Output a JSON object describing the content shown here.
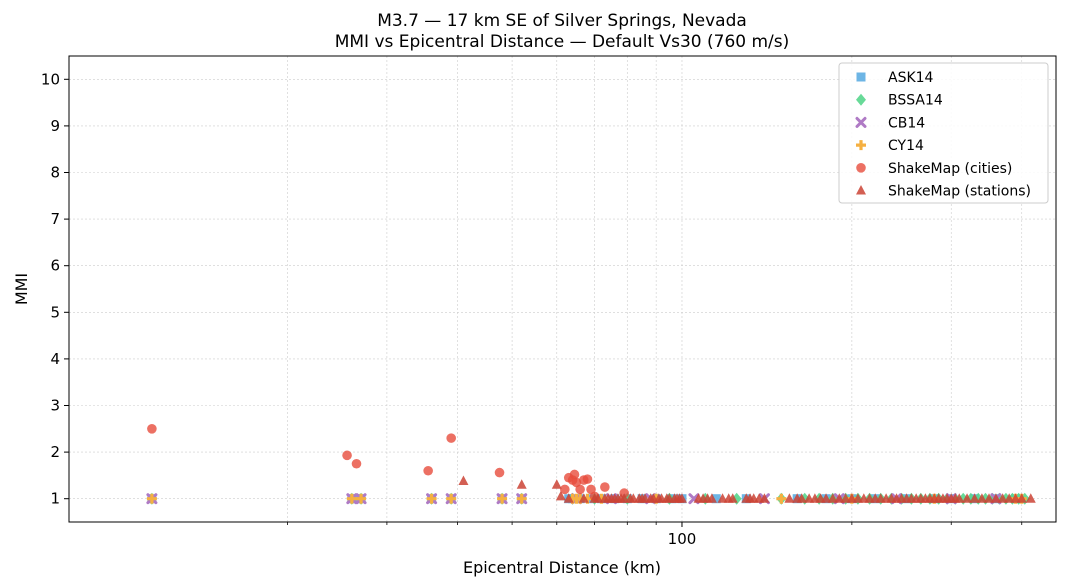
{
  "chart_data": {
    "type": "scatter",
    "title": "M3.7 — 17 km SE of Silver Springs, Nevada",
    "subtitle": "MMI vs Epicentral Distance — Default Vs30 (760 m/s)",
    "xlabel": "Epicentral Distance (km)",
    "ylabel": "MMI",
    "xscale": "log",
    "xlim": [
      8.2,
      460
    ],
    "ylim": [
      0.5,
      10.5
    ],
    "x_ticks": [
      {
        "value": 100,
        "label": "100"
      }
    ],
    "x_minor_ticks": [
      20,
      30,
      40,
      50,
      60,
      70,
      80,
      90,
      200,
      300,
      400
    ],
    "y_ticks": [
      1,
      2,
      3,
      4,
      5,
      6,
      7,
      8,
      9,
      10
    ],
    "grid": true,
    "legend_position": "top-right",
    "colors": {
      "ASK14": "#5dade2",
      "BSSA14": "#58d68d",
      "CB14": "#af7ac5",
      "CY14": "#f5b041",
      "ShakeMap (cities)": "#e74c3c",
      "ShakeMap (stations)": "#cb4335"
    },
    "series": [
      {
        "name": "ASK14",
        "marker": "square",
        "x": [
          11.5,
          26,
          26.5,
          27,
          36,
          39,
          48,
          52,
          63,
          64,
          66,
          69,
          72,
          76,
          80,
          85,
          90,
          96,
          100,
          115,
          130,
          160,
          180,
          200,
          220,
          250,
          280,
          300,
          330,
          360,
          390
        ],
        "y": [
          1,
          1,
          1,
          1,
          1,
          1,
          1,
          1,
          1,
          1,
          1,
          1,
          1,
          1,
          1,
          1,
          1,
          1,
          1,
          1,
          1,
          1,
          1,
          1,
          1,
          1,
          1,
          1,
          1,
          1,
          1
        ]
      },
      {
        "name": "BSSA14",
        "marker": "diamond",
        "x": [
          11.5,
          26,
          27,
          36,
          39,
          48,
          52,
          64,
          70,
          80,
          95,
          110,
          125,
          150,
          165,
          175,
          185,
          195,
          205,
          215,
          225,
          235,
          245,
          255,
          265,
          275,
          285,
          295,
          305,
          315,
          325,
          335,
          345,
          355,
          365,
          375,
          385,
          395,
          405
        ],
        "y": [
          1,
          1,
          1,
          1,
          1,
          1,
          1,
          1,
          1,
          1,
          1,
          1,
          1,
          1,
          1,
          1,
          1,
          1,
          1,
          1,
          1,
          1,
          1,
          1,
          1,
          1,
          1,
          1,
          1,
          1,
          1,
          1,
          1,
          1,
          1,
          1,
          1,
          1,
          1
        ]
      },
      {
        "name": "CB14",
        "marker": "x",
        "x": [
          11.5,
          26,
          27,
          36,
          39,
          48,
          52,
          65,
          75,
          88,
          105,
          140,
          190,
          240,
          300,
          360
        ],
        "y": [
          1,
          1,
          1,
          1,
          1,
          1,
          1,
          1,
          1,
          1,
          1,
          1,
          1,
          1,
          1,
          1
        ]
      },
      {
        "name": "CY14",
        "marker": "plus",
        "x": [
          11.5,
          26,
          27,
          36,
          39,
          48,
          52,
          64,
          65,
          66,
          68,
          72,
          90,
          150,
          200,
          280,
          390,
          400
        ],
        "y": [
          1,
          1,
          1,
          1,
          1,
          1,
          1,
          1,
          1,
          1,
          1,
          1,
          1,
          1,
          1,
          1,
          1,
          1
        ]
      },
      {
        "name": "ShakeMap (cities)",
        "marker": "circle",
        "x": [
          11.5,
          25.5,
          26.5,
          35.5,
          39,
          47.5,
          62,
          63,
          64,
          64.5,
          65,
          66,
          67,
          68,
          69,
          70,
          73,
          79
        ],
        "y": [
          2.5,
          1.93,
          1.75,
          1.6,
          2.3,
          1.56,
          1.2,
          1.45,
          1.4,
          1.52,
          1.35,
          1.2,
          1.4,
          1.42,
          1.2,
          1.05,
          1.25,
          1.12
        ]
      },
      {
        "name": "ShakeMap (stations)",
        "marker": "triangle",
        "x": [
          41,
          52,
          60,
          61,
          63,
          67,
          70,
          71,
          73,
          74,
          75,
          76,
          77,
          78,
          79,
          81,
          82,
          84,
          85,
          86,
          88,
          89,
          91,
          92,
          94,
          95,
          97,
          98,
          99,
          100,
          107,
          109,
          111,
          113,
          118,
          121,
          123,
          130,
          132,
          134,
          137,
          140,
          155,
          160,
          163,
          168,
          172,
          176,
          180,
          185,
          190,
          195,
          200,
          205,
          210,
          215,
          220,
          225,
          230,
          235,
          240,
          245,
          250,
          255,
          260,
          265,
          270,
          275,
          280,
          285,
          290,
          295,
          300,
          305,
          310,
          320,
          330,
          340,
          350,
          360,
          370,
          380,
          390,
          400,
          415
        ],
        "y": [
          1.38,
          1.3,
          1.3,
          1.05,
          1.0,
          1.0,
          1.0,
          1.0,
          1.0,
          1.0,
          1.0,
          1.0,
          1.0,
          1.0,
          1.0,
          1.0,
          1.0,
          1.0,
          1.0,
          1.0,
          1.0,
          1.0,
          1.0,
          1.0,
          1.0,
          1.0,
          1.0,
          1.0,
          1.0,
          1.0,
          1.0,
          1.0,
          1.0,
          1.0,
          1.0,
          1.0,
          1.0,
          1.0,
          1.0,
          1.0,
          1.0,
          1.0,
          1.0,
          1.0,
          1.0,
          1.0,
          1.0,
          1.0,
          1.0,
          1.0,
          1.0,
          1.0,
          1.0,
          1.0,
          1.0,
          1.0,
          1.0,
          1.0,
          1.0,
          1.0,
          1.0,
          1.0,
          1.0,
          1.0,
          1.0,
          1.0,
          1.0,
          1.0,
          1.0,
          1.0,
          1.0,
          1.0,
          1.0,
          1.0,
          1.0,
          1.0,
          1.0,
          1.0,
          1.0,
          1.0,
          1.0,
          1.0,
          1.0,
          1.0,
          1.0
        ]
      }
    ]
  }
}
